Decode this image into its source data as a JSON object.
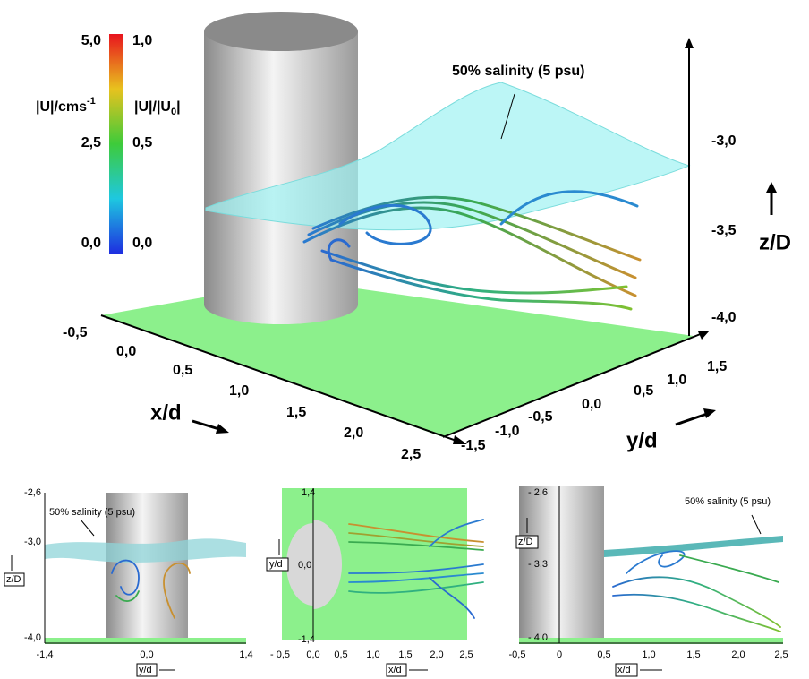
{
  "main": {
    "colorbar": {
      "velocity_labels": [
        "5,0",
        "2,5",
        "0,0"
      ],
      "ratio_labels": [
        "1,0",
        "0,5",
        "0,0"
      ],
      "velocity_title": [
        "|U|/cms",
        "-1"
      ],
      "ratio_title": [
        "|U|/|U",
        "0",
        "|"
      ]
    },
    "annotation": "50% salinity (5 psu)",
    "x_axis": {
      "label": "x/d",
      "ticks": [
        "-0,5",
        "0,0",
        "0,5",
        "1,0",
        "1,5",
        "2,0",
        "2,5"
      ]
    },
    "y_axis": {
      "label": "y/d",
      "ticks": [
        "-1,5",
        "-1,0",
        "-0,5",
        "0,0",
        "0,5",
        "1,0",
        "1,5"
      ]
    },
    "z_axis": {
      "label": "z/D",
      "ticks": [
        "-3,0",
        "-3,5",
        "-4,0"
      ]
    }
  },
  "panels": [
    {
      "annotation": "50% salinity (5 psu)",
      "y_ticks": [
        "-2,6",
        "-3,0",
        "-4,0"
      ],
      "x_ticks": [
        "-1,4",
        "0,0",
        "1,4"
      ],
      "x_label": "y/d",
      "y_label": "z/D"
    },
    {
      "y_ticks": [
        "1,4",
        "0,0",
        "-1,4"
      ],
      "x_ticks": [
        "- 0,5",
        "0,0",
        "0,5",
        "1,0",
        "1,5",
        "2,0",
        "2,5"
      ],
      "x_label": "x/d",
      "y_label": "y/d"
    },
    {
      "annotation": "50% salinity (5 psu)",
      "y_ticks": [
        "- 2,6",
        "- 3,3",
        "- 4,0"
      ],
      "x_ticks": [
        "-0,5",
        "0",
        "0,5",
        "1,0",
        "1,5",
        "2,0",
        "2,5"
      ],
      "x_label": "x/d",
      "y_label": "z/D"
    }
  ]
}
